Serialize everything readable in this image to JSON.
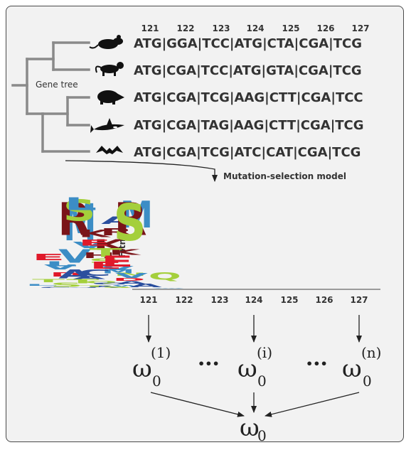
{
  "gene_tree_label": "Gene tree",
  "codon_positions": [
    "121",
    "122",
    "123",
    "124",
    "125",
    "126",
    "127"
  ],
  "sequences": [
    {
      "animal_icon": "mouse-icon",
      "text": "ATG|GGA|TCC|ATG|CTA|CGA|TCG"
    },
    {
      "animal_icon": "monkey-icon",
      "text": "ATG|CGA|TCC|ATG|GTA|CGA|TCG"
    },
    {
      "animal_icon": "boar-icon",
      "text": "ATG|CGA|TCG|AAG|CTT|CGA|TCC"
    },
    {
      "animal_icon": "orca-icon",
      "text": "ATG|CGA|TAG|AAG|CTT|CGA|TCG"
    },
    {
      "animal_icon": "bat-icon",
      "text": "ATG|CGA|TCG|ATC|CAT|CGA|TCG"
    }
  ],
  "model_label": "Mutation-selection model",
  "logo_ylabel": "Fitness",
  "logo_positions": [
    "121",
    "122",
    "123",
    "124",
    "125",
    "126",
    "127"
  ],
  "logo_columns": [
    {
      "top": "M",
      "others": [
        "E",
        "V",
        "D",
        "T",
        "L",
        "C"
      ]
    },
    {
      "top": "R",
      "others": [
        "V",
        "A",
        "S"
      ]
    },
    {
      "top": "S",
      "others": [
        "K",
        "V",
        "H",
        "L",
        "M",
        "A",
        "Q",
        "W",
        "C"
      ]
    },
    {
      "top": "M",
      "others": [
        "K",
        "I",
        "C",
        "T",
        "A"
      ]
    },
    {
      "top": "L",
      "others": [
        "A",
        "R",
        "E",
        "K",
        "S",
        "V",
        "N",
        "D",
        "C",
        "T",
        "W"
      ]
    },
    {
      "top": "R",
      "others": [
        "T",
        "E",
        "V",
        "A",
        "S"
      ]
    },
    {
      "top": "S",
      "others": [
        "E",
        "Q",
        "A"
      ]
    }
  ],
  "letter_colors": {
    "hydrophobic": "#3c8dc5",
    "acidic": "#e0192a",
    "basic": "#7a1419",
    "polar": "#a4cf3b",
    "other": "#2b4f9e"
  },
  "omega": {
    "symbol": "ω",
    "subscript": "0",
    "superscripts": [
      "(1)",
      "(i)",
      "(n)"
    ],
    "ellipsis": "•••"
  }
}
